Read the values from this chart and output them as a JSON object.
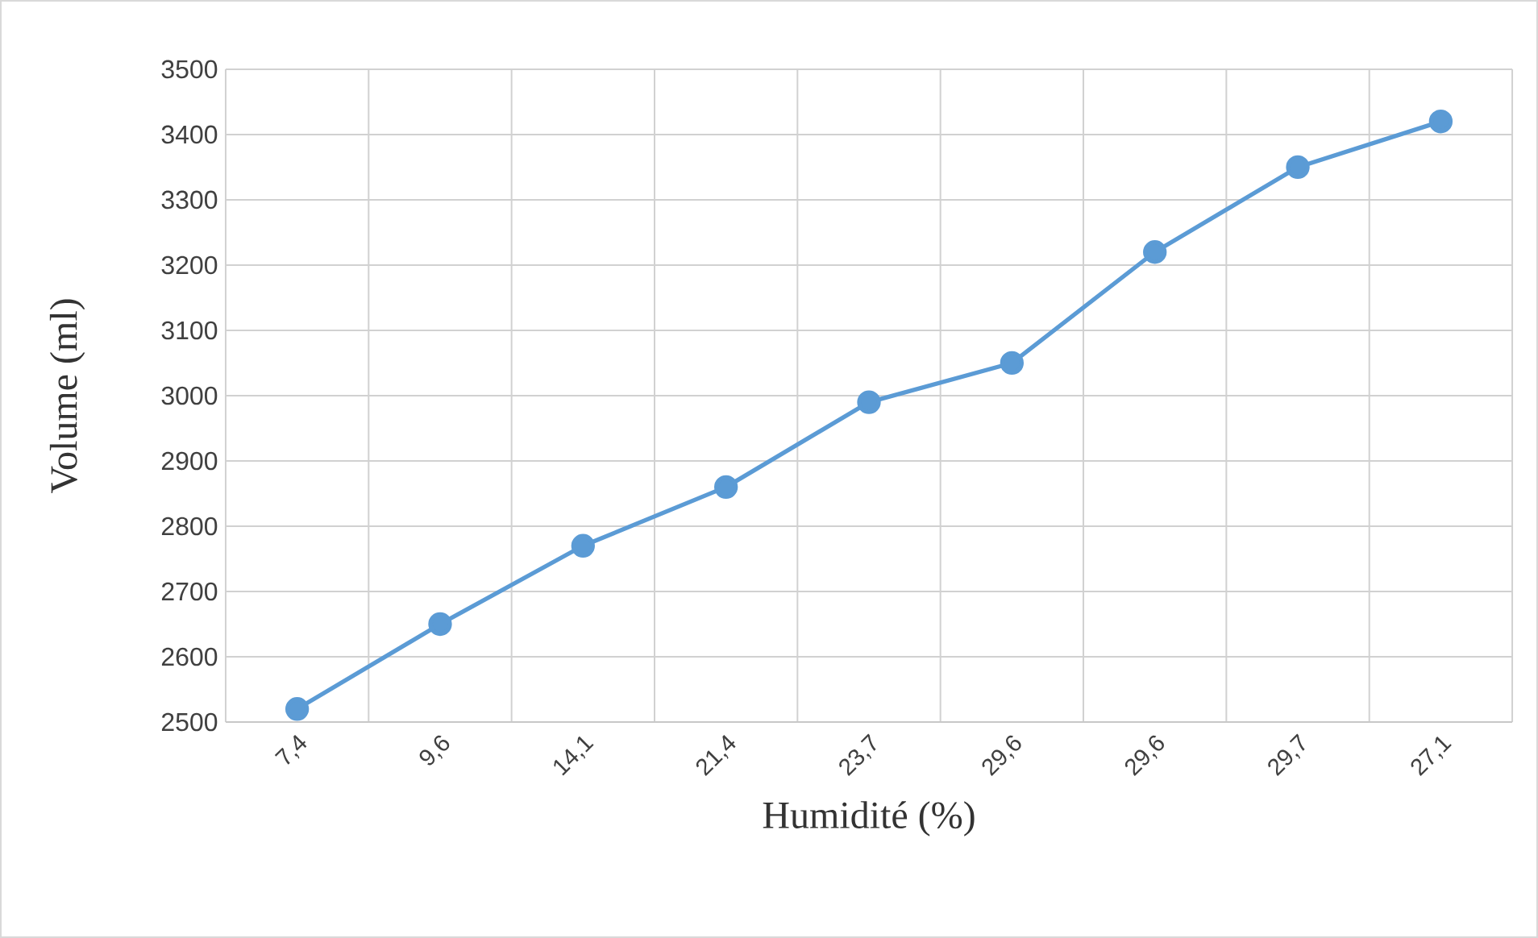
{
  "chart_data": {
    "type": "line",
    "xlabel": "Humidité (%)",
    "ylabel": "Volume (ml)",
    "categories": [
      "7,4",
      "9,6",
      "14,1",
      "21,4",
      "23,7",
      "29,6",
      "29,6",
      "29,7",
      "27,1"
    ],
    "series": [
      {
        "color": "#5b9bd5",
        "values": [
          2520,
          2650,
          2770,
          2860,
          2990,
          3050,
          3220,
          3350,
          3420
        ]
      }
    ],
    "ylim": [
      2500,
      3500
    ],
    "yticks": [
      2500,
      2600,
      2700,
      2800,
      2900,
      3000,
      3100,
      3200,
      3300,
      3400,
      3500
    ],
    "grid": true,
    "marker": "circle",
    "line_style": "solid"
  }
}
